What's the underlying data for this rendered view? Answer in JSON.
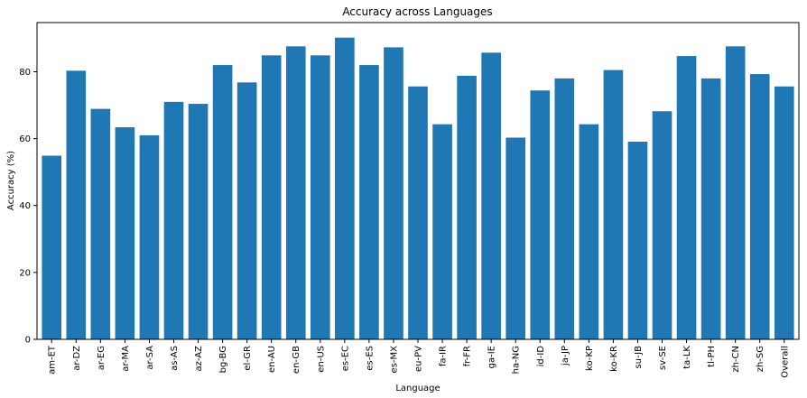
{
  "chart_data": {
    "type": "bar",
    "title": "Accuracy across Languages",
    "xlabel": "Language",
    "ylabel": "Accuracy (%)",
    "categories": [
      "am-ET",
      "ar-DZ",
      "ar-EG",
      "ar-MA",
      "ar-SA",
      "as-AS",
      "az-AZ",
      "bg-BG",
      "el-GR",
      "en-AU",
      "en-GB",
      "en-US",
      "es-EC",
      "es-ES",
      "es-MX",
      "eu-PV",
      "fa-IR",
      "fr-FR",
      "ga-IE",
      "ha-NG",
      "id-ID",
      "ja-JP",
      "ko-KP",
      "ko-KR",
      "su-JB",
      "sv-SE",
      "ta-LK",
      "tl-PH",
      "zh-CN",
      "zh-SG",
      "Overall"
    ],
    "values": [
      54.9,
      80.3,
      68.9,
      63.4,
      61.0,
      71.0,
      70.4,
      82.0,
      76.8,
      84.9,
      87.6,
      84.9,
      90.2,
      82.0,
      87.3,
      75.6,
      64.3,
      78.8,
      85.7,
      60.3,
      74.4,
      78.0,
      64.3,
      80.5,
      59.1,
      68.2,
      84.7,
      78.0,
      87.6,
      79.3,
      75.6
    ],
    "yticks": [
      0,
      20,
      40,
      60,
      80
    ],
    "ylim": [
      0,
      94.7
    ],
    "grid": false,
    "bar_color": "#1f77b4"
  }
}
